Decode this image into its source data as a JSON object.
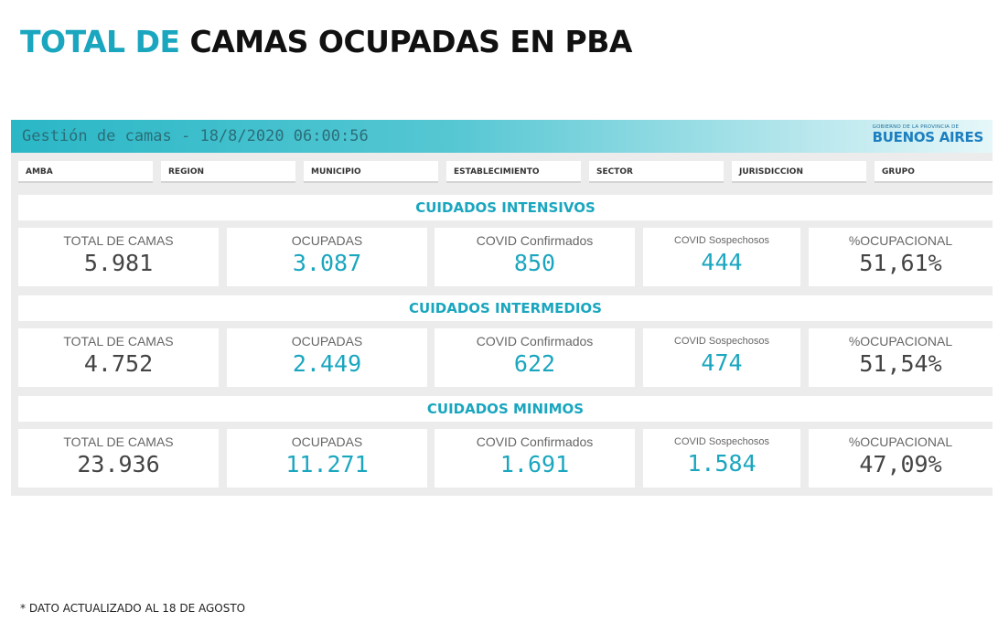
{
  "title": {
    "accent": "TOTAL DE",
    "rest": "CAMAS OCUPADAS EN PBA"
  },
  "banner": {
    "text": "Gestión de camas - 18/8/2020 06:00:56",
    "logo_small": "GOBIERNO DE LA PROVINCIA DE",
    "logo_big": "BUENOS AIRES"
  },
  "filters": [
    "AMBA",
    "REGION",
    "MUNICIPIO",
    "ESTABLECIMIENTO",
    "SECTOR",
    "JURISDICCION",
    "GRUPO"
  ],
  "sections": [
    {
      "title": "CUIDADOS INTENSIVOS",
      "cards": [
        {
          "label": "TOTAL DE CAMAS",
          "value": "5.981"
        },
        {
          "label": "OCUPADAS",
          "value": "3.087"
        },
        {
          "label": "COVID Confirmados",
          "value": "850"
        },
        {
          "label": "COVID Sospechosos",
          "value": "444"
        },
        {
          "label": "%OCUPACIONAL",
          "value": "51,61%"
        }
      ]
    },
    {
      "title": "CUIDADOS INTERMEDIOS",
      "cards": [
        {
          "label": "TOTAL DE CAMAS",
          "value": "4.752"
        },
        {
          "label": "OCUPADAS",
          "value": "2.449"
        },
        {
          "label": "COVID Confirmados",
          "value": "622"
        },
        {
          "label": "COVID Sospechosos",
          "value": "474"
        },
        {
          "label": "%OCUPACIONAL",
          "value": "51,54%"
        }
      ]
    },
    {
      "title": "CUIDADOS MINIMOS",
      "cards": [
        {
          "label": "TOTAL DE CAMAS",
          "value": "23.936"
        },
        {
          "label": "OCUPADAS",
          "value": "11.271"
        },
        {
          "label": "COVID Confirmados",
          "value": "1.691"
        },
        {
          "label": "COVID Sospechosos",
          "value": "1.584"
        },
        {
          "label": "%OCUPACIONAL",
          "value": "47,09%"
        }
      ]
    }
  ],
  "colors": {
    "accent": "#1aa6bf",
    "value_gray": "#444444",
    "label_gray": "#666666"
  },
  "footnote": "* DATO ACTUALIZADO AL 18 DE AGOSTO"
}
